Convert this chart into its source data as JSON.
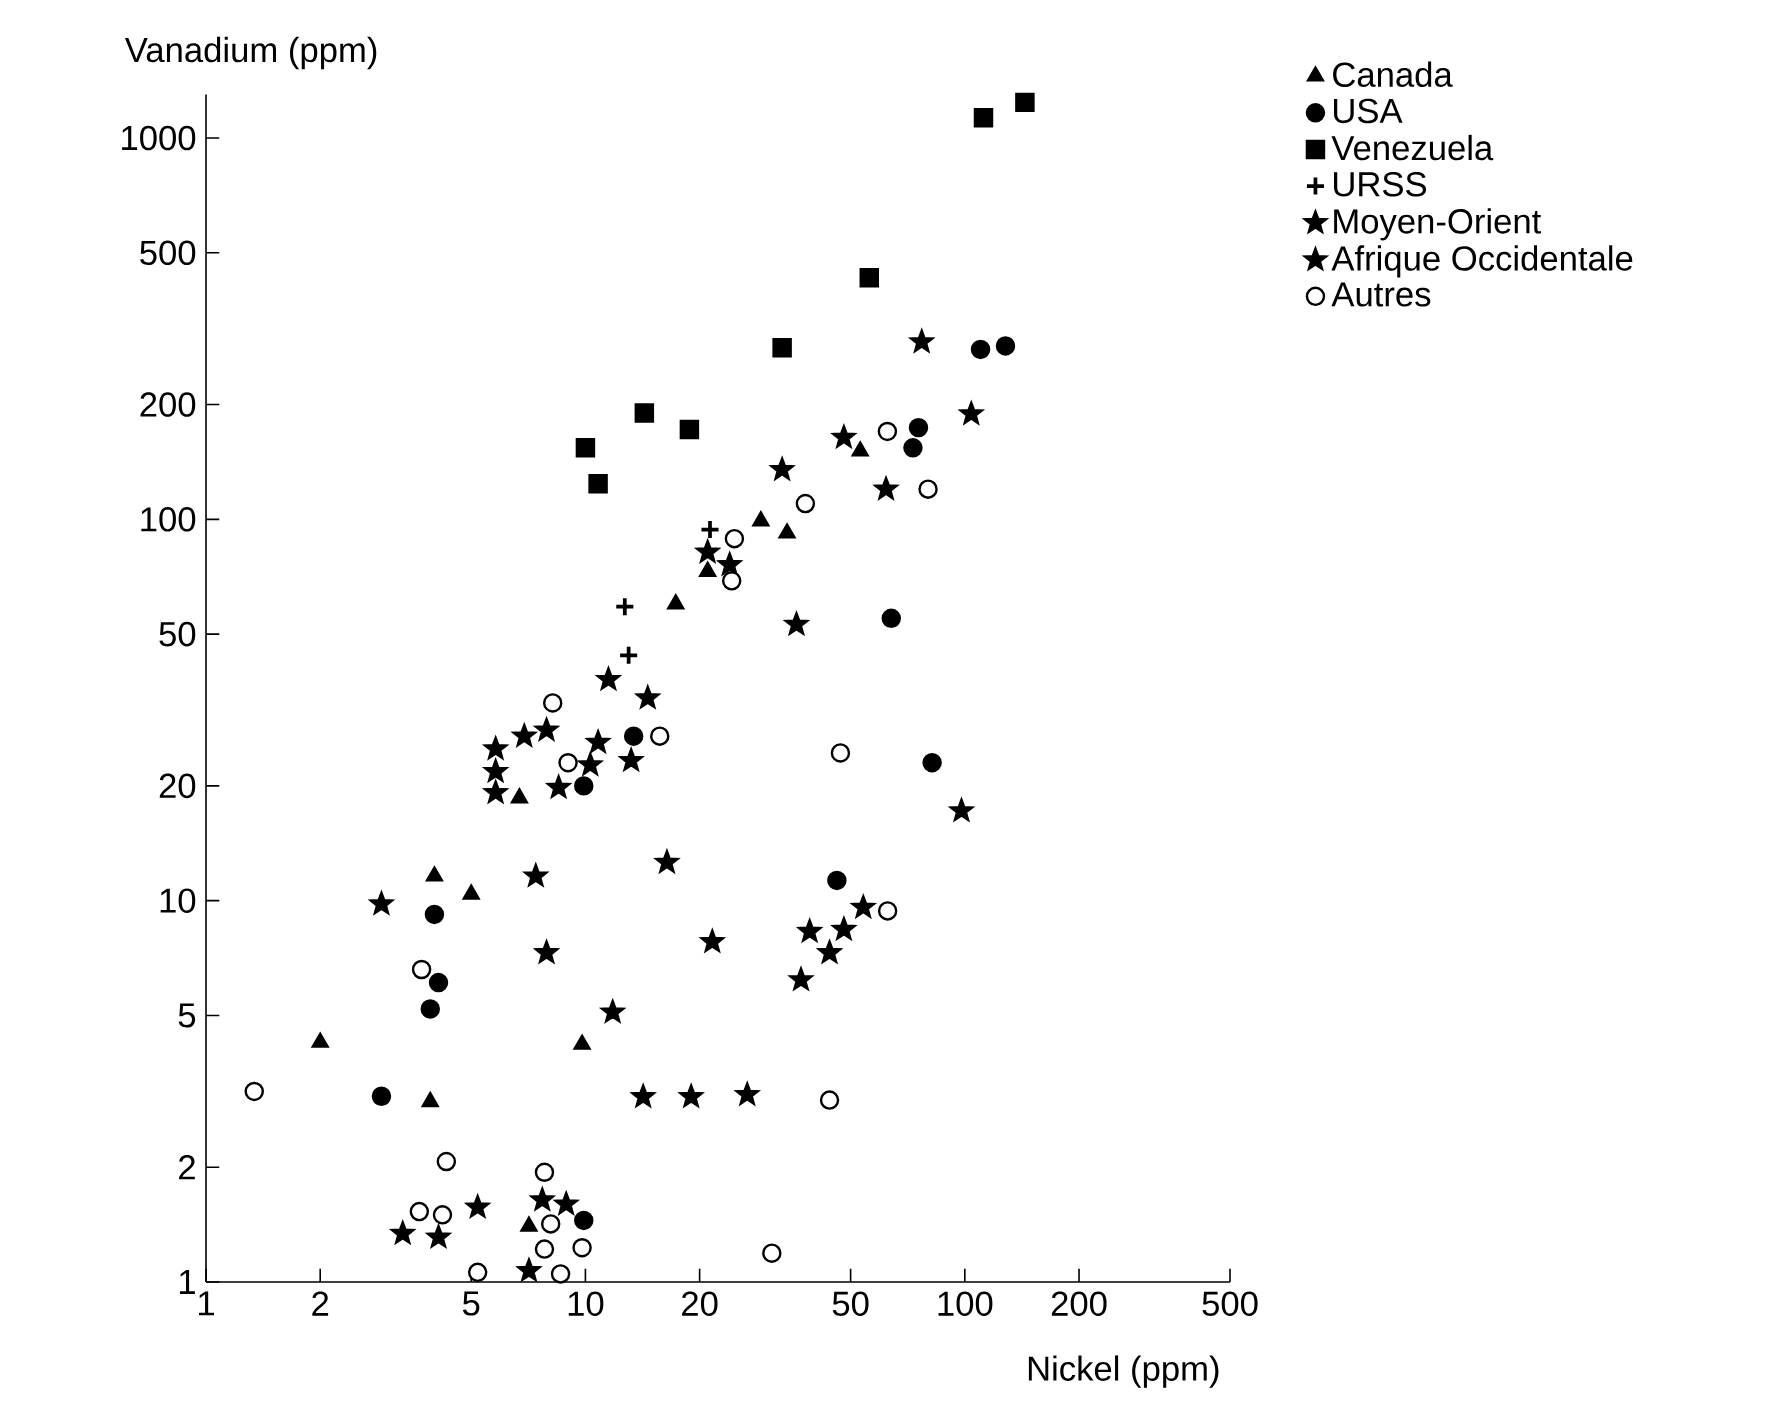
{
  "chart_data": {
    "type": "scatter",
    "xlabel": "Nickel (ppm)",
    "ylabel": "Vanadium (ppm)",
    "log": "xy",
    "grid": false,
    "legend": "top right",
    "xlim": [
      1,
      500
    ],
    "ylim": [
      1,
      1300
    ],
    "xticks": [
      1,
      2,
      5,
      10,
      20,
      50,
      100,
      200,
      500
    ],
    "yticks": [
      1,
      2,
      5,
      10,
      20,
      50,
      100,
      200,
      500,
      1000
    ],
    "series": [
      {
        "name": "Canada",
        "color": "#000000",
        "marker": "triangle",
        "x": [
          53,
          29,
          34,
          21,
          17.3,
          6.7,
          4.0,
          5,
          2,
          3.9,
          9.8,
          7.1
        ],
        "values": [
          151,
          99,
          92,
          73,
          60,
          18.6,
          11.6,
          10.4,
          4.25,
          2.97,
          4.2,
          1.4
        ]
      },
      {
        "name": "USA",
        "color": "#000000",
        "marker": "circle",
        "x": [
          110,
          128,
          75.5,
          73,
          64,
          82,
          13.4,
          9.9,
          46,
          4,
          4.1,
          3.9,
          2.9,
          9.9
        ],
        "values": [
          279,
          285,
          174,
          154,
          55,
          23,
          27,
          20,
          11.3,
          9.2,
          6.1,
          5.2,
          3.07,
          1.45
        ]
      },
      {
        "name": "Venezuela",
        "color": "#000000",
        "marker": "square",
        "x": [
          112,
          144,
          56,
          33,
          14.3,
          18.8,
          10,
          10.8
        ],
        "values": [
          1130,
          1240,
          430,
          282,
          190,
          172,
          154,
          124
        ]
      },
      {
        "name": "URSS",
        "color": "#000000",
        "marker": "cross",
        "x": [
          21.3,
          12.7,
          13
        ],
        "values": [
          94,
          59,
          44
        ]
      },
      {
        "name": "Moyen-Orient",
        "color": "#000000",
        "marker": "star",
        "x": [
          48,
          33,
          21,
          24,
          11.5,
          14.6,
          5.8,
          6.9,
          7.9,
          10.8,
          5.8,
          10.3,
          13.2,
          5.8,
          8.5,
          16.4,
          7.4,
          2.9,
          7.9
        ],
        "values": [
          164,
          135,
          82,
          76,
          38,
          34,
          25,
          27,
          28,
          26,
          21.8,
          22.7,
          23.3,
          19.2,
          19.8,
          12.6,
          11.6,
          9.8,
          7.3
        ]
      },
      {
        "name": "Afrique Occidentale",
        "color": "#000000",
        "marker": "star",
        "x": [
          77,
          104,
          62,
          36,
          98,
          54,
          39,
          48,
          44,
          37,
          21.6,
          11.8,
          14.2,
          19,
          26.7,
          5.2,
          7.7,
          8.9,
          3.3,
          4.1,
          7.1
        ],
        "values": [
          292,
          189,
          120,
          53,
          17.2,
          9.6,
          8.3,
          8.4,
          7.3,
          6.2,
          7.8,
          5.1,
          3.06,
          3.06,
          3.1,
          1.57,
          1.64,
          1.6,
          1.34,
          1.31,
          1.07
        ]
      },
      {
        "name": "Autres",
        "color": "#ffffff",
        "marker": "circle",
        "x": [
          62.5,
          80,
          38,
          24.7,
          24.3,
          8.2,
          15.7,
          9.0,
          47,
          62.6,
          3.7,
          1.34,
          44,
          4.3,
          7.8,
          3.65,
          4.2,
          8.1,
          7.8,
          9.8,
          31,
          5.2,
          8.6
        ],
        "values": [
          170,
          120,
          110,
          89,
          69,
          33,
          27,
          23,
          24.4,
          9.4,
          6.6,
          3.16,
          3.0,
          2.07,
          1.94,
          1.53,
          1.5,
          1.42,
          1.22,
          1.23,
          1.19,
          1.06,
          1.05
        ]
      }
    ]
  }
}
